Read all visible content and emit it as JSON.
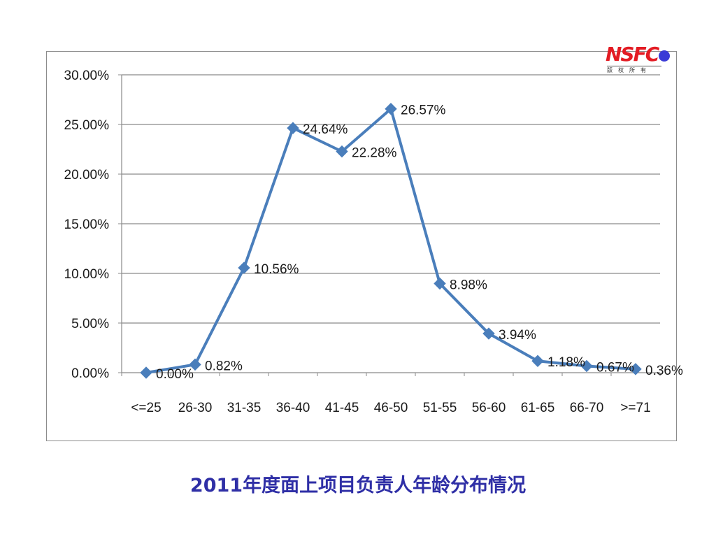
{
  "logo": {
    "text": "NSFC",
    "subtext": "版权所有",
    "dot_color": "#3b3bd6",
    "text_color": "#e31b23"
  },
  "caption": "2011年度面上项目负责人年龄分布情况",
  "chart_data": {
    "type": "line",
    "title": "",
    "xlabel": "",
    "ylabel": "",
    "categories": [
      "<=25",
      "26-30",
      "31-35",
      "36-40",
      "41-45",
      "46-50",
      "51-55",
      "56-60",
      "61-65",
      "66-70",
      ">=71"
    ],
    "values": [
      0.0,
      0.82,
      10.56,
      24.64,
      22.28,
      26.57,
      8.98,
      3.94,
      1.18,
      0.67,
      0.36
    ],
    "data_labels": [
      "0.00%",
      "0.82%",
      "10.56%",
      "24.64%",
      "22.28%",
      "26.57%",
      "8.98%",
      "3.94%",
      "1.18%",
      "0.67%",
      "0.36%"
    ],
    "ylim": [
      0,
      30
    ],
    "yticks": [
      0,
      5,
      10,
      15,
      20,
      25,
      30
    ],
    "ytick_labels": [
      "0.00%",
      "5.00%",
      "10.00%",
      "15.00%",
      "20.00%",
      "25.00%",
      "30.00%"
    ],
    "grid": true,
    "legend": "none",
    "line_color": "#4a7ebb",
    "marker": "diamond"
  }
}
